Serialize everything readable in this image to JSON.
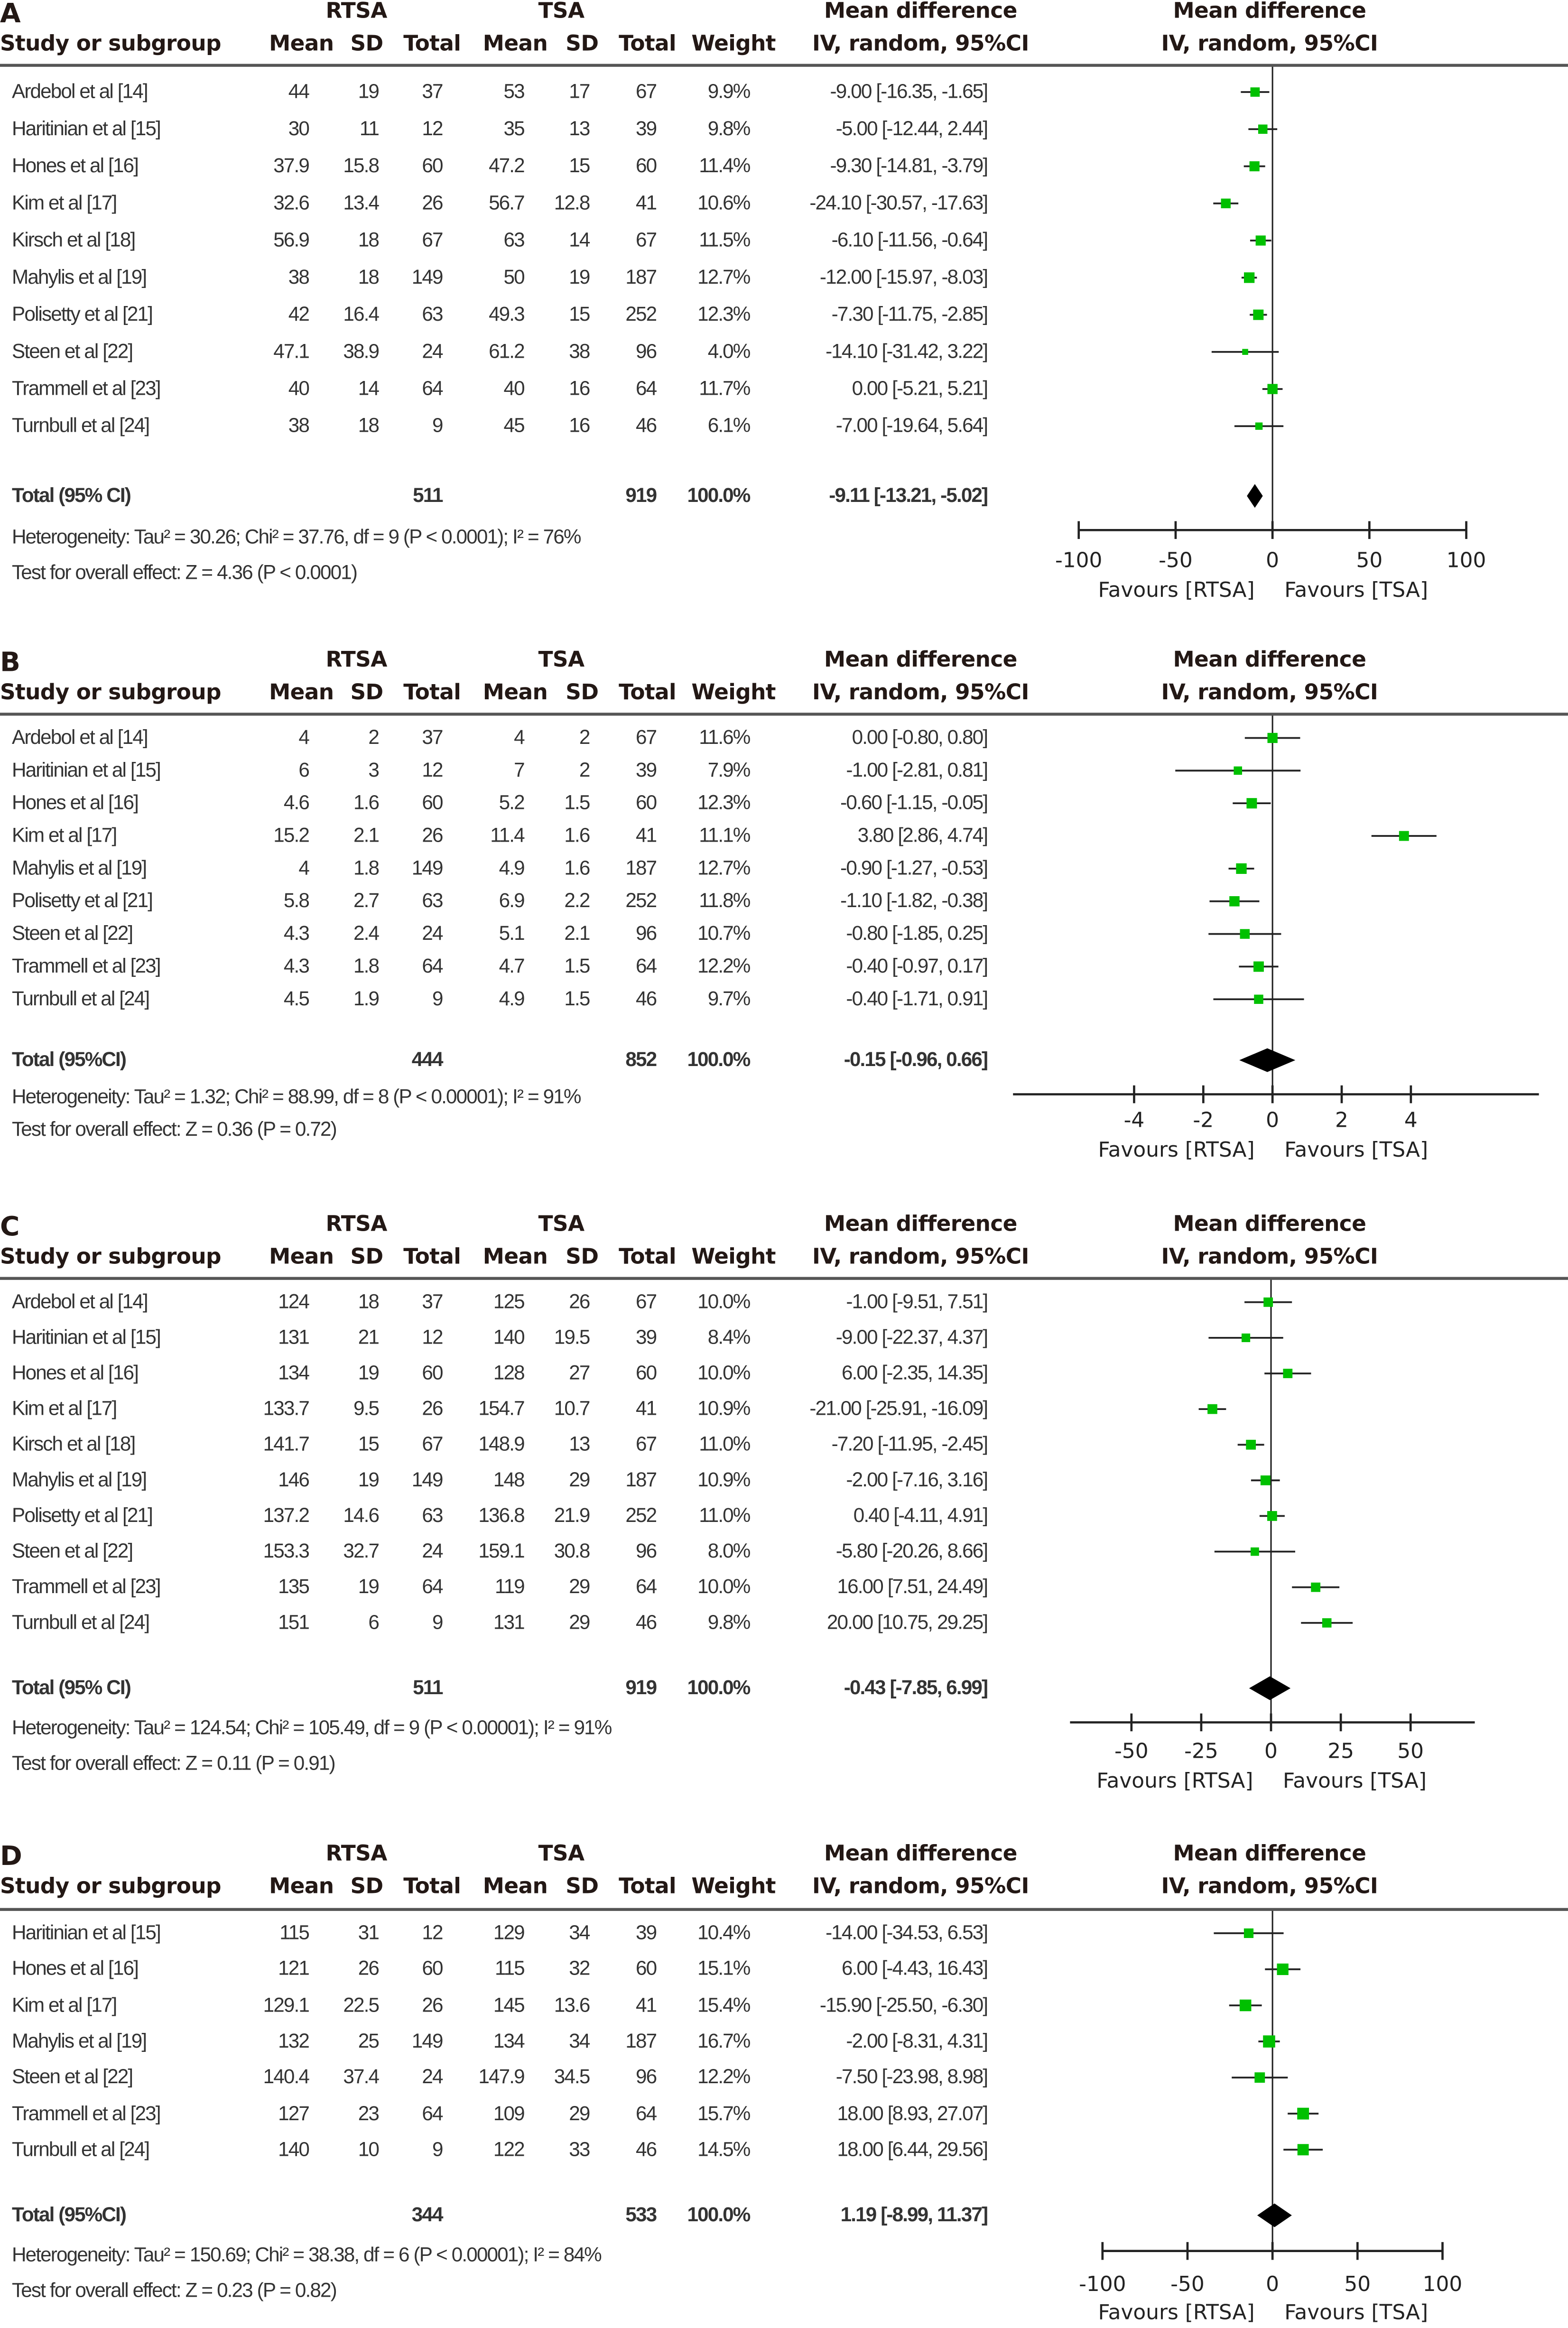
{
  "columns": {
    "group1": "RTSA",
    "group2": "TSA",
    "study": "Study or subgroup",
    "mean": "Mean",
    "sd": "SD",
    "total": "Total",
    "weight": "Weight",
    "md_title": "Mean difference",
    "md_method": "IV, random, 95%CI"
  },
  "chart_data": [
    {
      "type": "forest",
      "panel": "A",
      "axis_ticks": [
        -100,
        -50,
        0,
        50,
        100
      ],
      "xlim": [
        -100,
        100
      ],
      "favours_left": "Favours [RTSA]",
      "favours_right": "Favours [TSA]",
      "studies": [
        {
          "name": "Ardebol et al  [14]",
          "rtsa": [
            "44",
            "19",
            "37"
          ],
          "tsa": [
            "53",
            "17",
            "67"
          ],
          "weight": "9.9%",
          "ci": "-9.00 [-16.35, -1.65]"
        },
        {
          "name": "Haritinian et al [15]",
          "rtsa": [
            "30",
            "11",
            "12"
          ],
          "tsa": [
            "35",
            "13",
            "39"
          ],
          "weight": "9.8%",
          "ci": "-5.00 [-12.44, 2.44]"
        },
        {
          "name": "Hones et al [16]",
          "rtsa": [
            "37.9",
            "15.8",
            "60"
          ],
          "tsa": [
            "47.2",
            "15",
            "60"
          ],
          "weight": "11.4%",
          "ci": "-9.30 [-14.81, -3.79]"
        },
        {
          "name": "Kim et al [17]",
          "rtsa": [
            "32.6",
            "13.4",
            "26"
          ],
          "tsa": [
            "56.7",
            "12.8",
            "41"
          ],
          "weight": "10.6%",
          "ci": "-24.10 [-30.57, -17.63]"
        },
        {
          "name": "Kirsch et al [18]",
          "rtsa": [
            "56.9",
            "18",
            "67"
          ],
          "tsa": [
            "63",
            "14",
            "67"
          ],
          "weight": "11.5%",
          "ci": "-6.10 [-11.56, -0.64]"
        },
        {
          "name": "Mahylis et al [19]",
          "rtsa": [
            "38",
            "18",
            "149"
          ],
          "tsa": [
            "50",
            "19",
            "187"
          ],
          "weight": "12.7%",
          "ci": "-12.00 [-15.97, -8.03]"
        },
        {
          "name": "Polisetty et al [21]",
          "rtsa": [
            "42",
            "16.4",
            "63"
          ],
          "tsa": [
            "49.3",
            "15",
            "252"
          ],
          "weight": "12.3%",
          "ci": "-7.30 [-11.75, -2.85]"
        },
        {
          "name": "Steen et al [22]",
          "rtsa": [
            "47.1",
            "38.9",
            "24"
          ],
          "tsa": [
            "61.2",
            "38",
            "96"
          ],
          "weight": "4.0%",
          "ci": "-14.10 [-31.42, 3.22]"
        },
        {
          "name": "Trammell et al [23]",
          "rtsa": [
            "40",
            "14",
            "64"
          ],
          "tsa": [
            "40",
            "16",
            "64"
          ],
          "weight": "11.7%",
          "ci": "0.00 [-5.21, 5.21]"
        },
        {
          "name": "Turnbull et al [24]",
          "rtsa": [
            "38",
            "18",
            "9"
          ],
          "tsa": [
            "45",
            "16",
            "46"
          ],
          "weight": "6.1%",
          "ci": "-7.00 [-19.64, 5.64]"
        }
      ],
      "total": {
        "name": "Total (95% CI)",
        "rtsa_total": "511",
        "tsa_total": "919",
        "weight": "100.0%",
        "ci": "-9.11 [-13.21, -5.02]"
      },
      "heterogeneity": "Heterogeneity: Tau² = 30.26; Chi² = 37.76, df = 9 (P < 0.0001); I² = 76%",
      "overall_effect": "Test for overall effect: Z = 4.36 (P < 0.0001)"
    },
    {
      "type": "forest",
      "panel": "B",
      "axis_ticks": [
        -4,
        -2,
        0,
        2,
        4
      ],
      "xlim": [
        -7.5,
        7.7
      ],
      "favours_left": "Favours [RTSA]",
      "favours_right": "Favours [TSA]",
      "studies": [
        {
          "name": "Ardebol et al  [14]",
          "rtsa": [
            "4",
            "2",
            "37"
          ],
          "tsa": [
            "4",
            "2",
            "67"
          ],
          "weight": "11.6%",
          "ci": "0.00 [-0.80, 0.80]"
        },
        {
          "name": "Haritinian et al [15]",
          "rtsa": [
            "6",
            "3",
            "12"
          ],
          "tsa": [
            "7",
            "2",
            "39"
          ],
          "weight": "7.9%",
          "ci": "-1.00 [-2.81, 0.81]"
        },
        {
          "name": "Hones et al [16]",
          "rtsa": [
            "4.6",
            "1.6",
            "60"
          ],
          "tsa": [
            "5.2",
            "1.5",
            "60"
          ],
          "weight": "12.3%",
          "ci": "-0.60 [-1.15, -0.05]"
        },
        {
          "name": "Kim et al [17]",
          "rtsa": [
            "15.2",
            "2.1",
            "26"
          ],
          "tsa": [
            "11.4",
            "1.6",
            "41"
          ],
          "weight": "11.1%",
          "ci": "3.80 [2.86, 4.74]"
        },
        {
          "name": "Mahylis et al [19]",
          "rtsa": [
            "4",
            "1.8",
            "149"
          ],
          "tsa": [
            "4.9",
            "1.6",
            "187"
          ],
          "weight": "12.7%",
          "ci": "-0.90 [-1.27, -0.53]"
        },
        {
          "name": "Polisetty et al [21]",
          "rtsa": [
            "5.8",
            "2.7",
            "63"
          ],
          "tsa": [
            "6.9",
            "2.2",
            "252"
          ],
          "weight": "11.8%",
          "ci": "-1.10 [-1.82, -0.38]"
        },
        {
          "name": "Steen et al [22]",
          "rtsa": [
            "4.3",
            "2.4",
            "24"
          ],
          "tsa": [
            "5.1",
            "2.1",
            "96"
          ],
          "weight": "10.7%",
          "ci": "-0.80 [-1.85, 0.25]"
        },
        {
          "name": "Trammell et al [23]",
          "rtsa": [
            "4.3",
            "1.8",
            "64"
          ],
          "tsa": [
            "4.7",
            "1.5",
            "64"
          ],
          "weight": "12.2%",
          "ci": "-0.40 [-0.97, 0.17]"
        },
        {
          "name": "Turnbull et al [24]",
          "rtsa": [
            "4.5",
            "1.9",
            "9"
          ],
          "tsa": [
            "4.9",
            "1.5",
            "46"
          ],
          "weight": "9.7%",
          "ci": "-0.40 [-1.71, 0.91]"
        }
      ],
      "total": {
        "name": "Total (95%CI)",
        "rtsa_total": "444",
        "tsa_total": "852",
        "weight": "100.0%",
        "ci": "-0.15 [-0.96, 0.66]"
      },
      "heterogeneity": "Heterogeneity: Tau² = 1.32; Chi² = 88.99, df = 8 (P < 0.00001); I² = 91%",
      "overall_effect": "Test for overall effect: Z = 0.36 (P = 0.72)"
    },
    {
      "type": "forest",
      "panel": "C",
      "axis_ticks": [
        -50,
        -25,
        0,
        25,
        50
      ],
      "xlim": [
        -72,
        73
      ],
      "favours_left": "Favours [RTSA]",
      "favours_right": "Favours [TSA]",
      "studies": [
        {
          "name": "Ardebol et al  [14]",
          "rtsa": [
            "124",
            "18",
            "37"
          ],
          "tsa": [
            "125",
            "26",
            "67"
          ],
          "weight": "10.0%",
          "ci": "-1.00 [-9.51, 7.51]"
        },
        {
          "name": "Haritinian et al [15]",
          "rtsa": [
            "131",
            "21",
            "12"
          ],
          "tsa": [
            "140",
            "19.5",
            "39"
          ],
          "weight": "8.4%",
          "ci": "-9.00 [-22.37, 4.37]"
        },
        {
          "name": "Hones et al [16]",
          "rtsa": [
            "134",
            "19",
            "60"
          ],
          "tsa": [
            "128",
            "27",
            "60"
          ],
          "weight": "10.0%",
          "ci": "6.00 [-2.35, 14.35]"
        },
        {
          "name": "Kim et al [17]",
          "rtsa": [
            "133.7",
            "9.5",
            "26"
          ],
          "tsa": [
            "154.7",
            "10.7",
            "41"
          ],
          "weight": "10.9%",
          "ci": "-21.00 [-25.91, -16.09]"
        },
        {
          "name": "Kirsch et al [18]",
          "rtsa": [
            "141.7",
            "15",
            "67"
          ],
          "tsa": [
            "148.9",
            "13",
            "67"
          ],
          "weight": "11.0%",
          "ci": "-7.20 [-11.95, -2.45]"
        },
        {
          "name": "Mahylis et al [19]",
          "rtsa": [
            "146",
            "19",
            "149"
          ],
          "tsa": [
            "148",
            "29",
            "187"
          ],
          "weight": "10.9%",
          "ci": "-2.00 [-7.16, 3.16]"
        },
        {
          "name": "Polisetty et al [21]",
          "rtsa": [
            "137.2",
            "14.6",
            "63"
          ],
          "tsa": [
            "136.8",
            "21.9",
            "252"
          ],
          "weight": "11.0%",
          "ci": "0.40 [-4.11, 4.91]"
        },
        {
          "name": "Steen et al [22]",
          "rtsa": [
            "153.3",
            "32.7",
            "24"
          ],
          "tsa": [
            "159.1",
            "30.8",
            "96"
          ],
          "weight": "8.0%",
          "ci": "-5.80 [-20.26, 8.66]"
        },
        {
          "name": "Trammell et al [23]",
          "rtsa": [
            "135",
            "19",
            "64"
          ],
          "tsa": [
            "119",
            "29",
            "64"
          ],
          "weight": "10.0%",
          "ci": "16.00 [7.51, 24.49]"
        },
        {
          "name": "Turnbull et al [24]",
          "rtsa": [
            "151",
            "6",
            "9"
          ],
          "tsa": [
            "131",
            "29",
            "46"
          ],
          "weight": "9.8%",
          "ci": "20.00 [10.75, 29.25]"
        }
      ],
      "total": {
        "name": "Total (95% CI)",
        "rtsa_total": "511",
        "tsa_total": "919",
        "weight": "100.0%",
        "ci": "-0.43 [-7.85, 6.99]"
      },
      "heterogeneity": "Heterogeneity: Tau² = 124.54; Chi² = 105.49, df = 9 (P < 0.00001); I² = 91%",
      "overall_effect": "Test for overall effect: Z = 0.11 (P = 0.91)"
    },
    {
      "type": "forest",
      "panel": "D",
      "axis_ticks": [
        -100,
        -50,
        0,
        50,
        100
      ],
      "xlim": [
        -100,
        100
      ],
      "favours_left": "Favours [RTSA]",
      "favours_right": "Favours [TSA]",
      "studies": [
        {
          "name": "Haritinian et al [15]",
          "rtsa": [
            "115",
            "31",
            "12"
          ],
          "tsa": [
            "129",
            "34",
            "39"
          ],
          "weight": "10.4%",
          "ci": "-14.00 [-34.53, 6.53]"
        },
        {
          "name": "Hones et al [16]",
          "rtsa": [
            "121",
            "26",
            "60"
          ],
          "tsa": [
            "115",
            "32",
            "60"
          ],
          "weight": "15.1%",
          "ci": "6.00 [-4.43, 16.43]"
        },
        {
          "name": "Kim et al [17]",
          "rtsa": [
            "129.1",
            "22.5",
            "26"
          ],
          "tsa": [
            "145",
            "13.6",
            "41"
          ],
          "weight": "15.4%",
          "ci": "-15.90 [-25.50, -6.30]"
        },
        {
          "name": "Mahylis et al [19]",
          "rtsa": [
            "132",
            "25",
            "149"
          ],
          "tsa": [
            "134",
            "34",
            "187"
          ],
          "weight": "16.7%",
          "ci": "-2.00 [-8.31, 4.31]"
        },
        {
          "name": "Steen et al [22]",
          "rtsa": [
            "140.4",
            "37.4",
            "24"
          ],
          "tsa": [
            "147.9",
            "34.5",
            "96"
          ],
          "weight": "12.2%",
          "ci": "-7.50 [-23.98, 8.98]"
        },
        {
          "name": "Trammell et al [23]",
          "rtsa": [
            "127",
            "23",
            "64"
          ],
          "tsa": [
            "109",
            "29",
            "64"
          ],
          "weight": "15.7%",
          "ci": "18.00 [8.93, 27.07]"
        },
        {
          "name": "Turnbull et al [24]",
          "rtsa": [
            "140",
            "10",
            "9"
          ],
          "tsa": [
            "122",
            "33",
            "46"
          ],
          "weight": "14.5%",
          "ci": "18.00 [6.44, 29.56]"
        }
      ],
      "total": {
        "name": "Total (95%CI)",
        "rtsa_total": "344",
        "tsa_total": "533",
        "weight": "100.0%",
        "ci": "1.19 [-8.99, 11.37]"
      },
      "heterogeneity": "Heterogeneity: Tau² = 150.69; Chi² = 38.38, df = 6 (P < 0.00001); I² = 84%",
      "overall_effect": "Test for overall effect: Z = 0.23 (P = 0.82)"
    }
  ],
  "colors": {
    "point": "#00c000",
    "line": "#222222",
    "diamond": "#000000",
    "rule": "#555555"
  }
}
